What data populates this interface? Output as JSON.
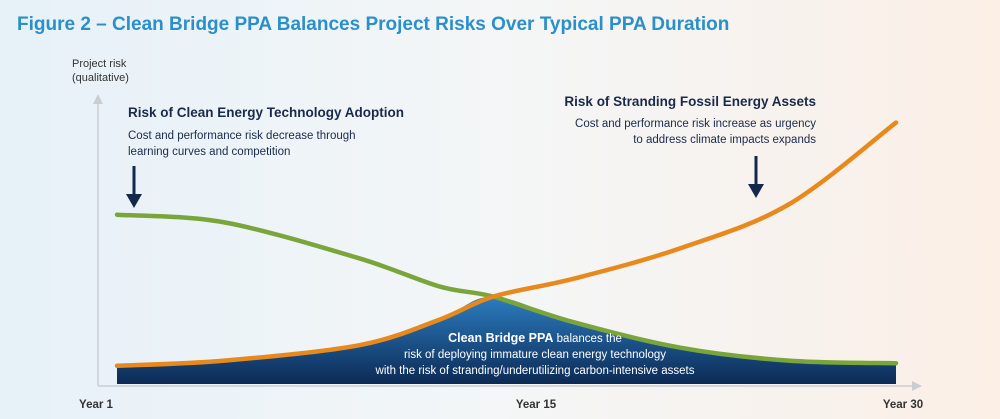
{
  "figure": {
    "title": "Figure 2 – Clean Bridge PPA Balances Project Risks Over Typical PPA Duration"
  },
  "colors": {
    "title": "#2b8fc9",
    "clean_tech_curve": "#7aa53a",
    "fossil_curve": "#e8891e",
    "overlap_area_dark": "#0c2a55",
    "overlap_area_light": "#2c7dc0",
    "arrow": "#14284b",
    "axis": "#c9ced3",
    "text_dark": "#1a2a4a"
  },
  "annotations": {
    "left_heading": "Risk of Clean Energy Technology Adoption",
    "left_body_1": "Cost and performance risk decrease through",
    "left_body_2": "learning curves and competition",
    "right_heading": "Risk of Stranding Fossil Energy Assets",
    "right_body_1": "Cost and performance risk increase as urgency",
    "right_body_2": "to address climate impacts expands",
    "center_bold": "Clean Bridge PPA",
    "center_line_1_rest": " balances the",
    "center_line_2": "risk of deploying immature clean energy technology",
    "center_line_3": "with the risk of stranding/underutilizing carbon-intensive assets"
  },
  "chart_data": {
    "type": "line",
    "x_ticks": [
      "Year 1",
      "Year 15",
      "Year 30"
    ],
    "ylabel_line_1": "Project risk",
    "ylabel_line_2": "(qualitative)",
    "qualitative": true,
    "xlim": [
      1,
      30
    ],
    "ylim": [
      0,
      1
    ],
    "series": [
      {
        "name": "Risk of Clean Energy Technology Adoption",
        "key": "clean_tech",
        "x": [
          1,
          5,
          10,
          13,
          15,
          18,
          22,
          26,
          30
        ],
        "y": [
          0.63,
          0.6,
          0.46,
          0.35,
          0.31,
          0.21,
          0.11,
          0.06,
          0.05
        ]
      },
      {
        "name": "Risk of Stranding Fossil Energy Assets",
        "key": "fossil",
        "x": [
          1,
          5,
          10,
          13,
          15,
          18,
          22,
          26,
          30
        ],
        "y": [
          0.04,
          0.06,
          0.12,
          0.22,
          0.31,
          0.38,
          0.5,
          0.67,
          0.99
        ]
      }
    ],
    "shaded_region": "area under the lower of the two curves",
    "grid": false,
    "legend": "none"
  }
}
